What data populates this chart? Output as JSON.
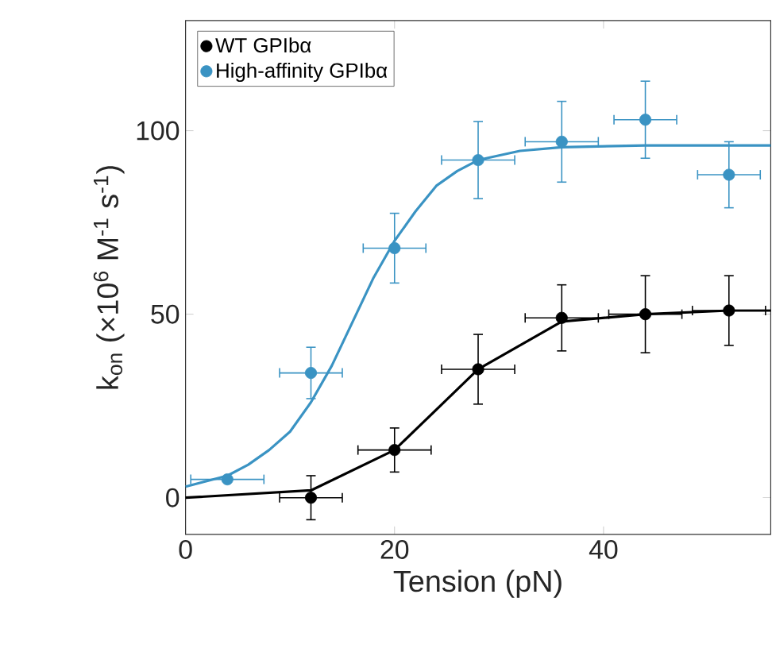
{
  "chart_data": {
    "type": "scatter",
    "xlabel": "Tension (pN)",
    "ylabel": "k$_{on}$ (×10$^{6}$ M$^{-1}$ s$^{-1}$)",
    "xlim": [
      0,
      56
    ],
    "ylim": [
      -10,
      130
    ],
    "xticks": [
      0,
      20,
      40
    ],
    "yticks": [
      0,
      50,
      100
    ],
    "legend": "top left",
    "marker": "circle",
    "grid": false,
    "series": [
      {
        "name": "WT GPIbα",
        "color": "#000000",
        "x": [
          12,
          20,
          28,
          36,
          44,
          52
        ],
        "values": [
          0,
          13,
          35,
          49,
          50,
          51
        ],
        "errors": [
          6,
          6,
          9.5,
          9,
          10.5,
          9.5
        ],
        "xerrors": [
          3,
          3.5,
          3.5,
          3.5,
          3.5,
          3.5
        ]
      },
      {
        "name": "High-affinity GPIbα",
        "color": "#3a93c3",
        "x": [
          4,
          12,
          20,
          28,
          36,
          44,
          52
        ],
        "values": [
          5,
          34,
          68,
          92,
          97,
          103,
          88
        ],
        "errors": [
          null,
          7,
          9.5,
          10.5,
          11,
          10.5,
          9
        ],
        "xerrors": [
          3.5,
          3,
          3,
          3.5,
          3.5,
          3,
          3
        ]
      },
      {
        "type": "line",
        "color": "#000000",
        "marker": "none",
        "x": [
          0,
          12,
          20,
          28,
          36,
          44,
          52,
          56
        ],
        "values": [
          0,
          2,
          13,
          35,
          48,
          50,
          51,
          51
        ]
      },
      {
        "type": "line",
        "color": "#3a93c3",
        "marker": "none",
        "x": [
          0,
          4,
          6,
          8,
          10,
          12,
          14,
          16,
          18,
          20,
          22,
          24,
          26,
          28,
          32,
          36,
          44,
          56
        ],
        "values": [
          3,
          6,
          9,
          13,
          18,
          26,
          36,
          48,
          60,
          70,
          78,
          85,
          89,
          92,
          94.5,
          95.5,
          96,
          96
        ]
      }
    ]
  }
}
